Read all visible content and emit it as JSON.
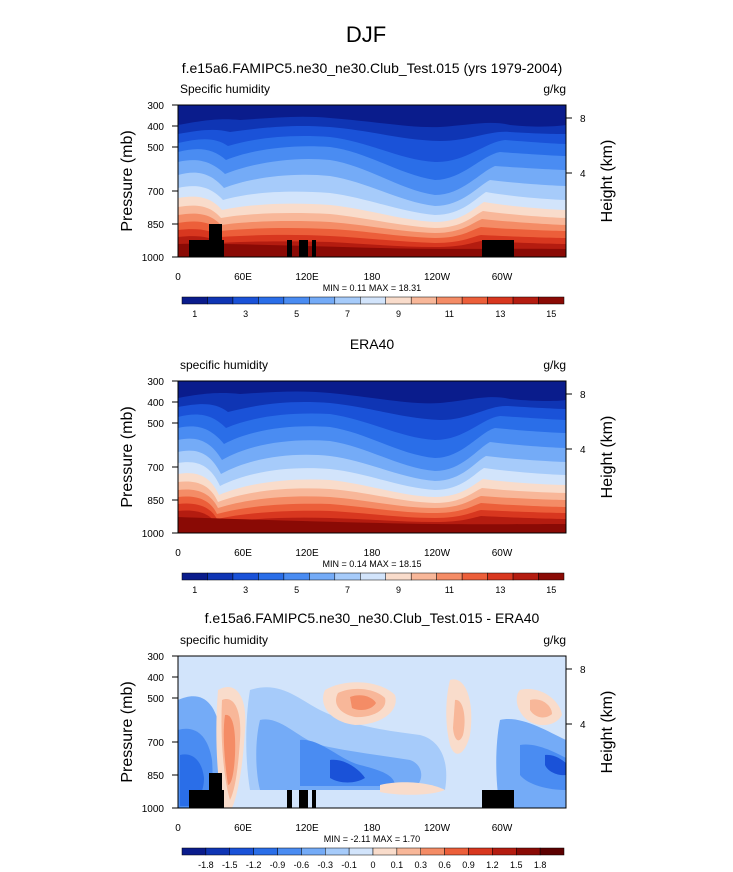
{
  "figure": {
    "title": "DJF"
  },
  "chart_data": [
    {
      "type": "heatmap",
      "title": "f.e15a6.FAMIPC5.ne30_ne30.Club_Test.015 (yrs 1979-2004)",
      "field_label": "Specific humidity",
      "units": "g/kg",
      "ylabel": "Pressure (mb)",
      "y2label": "Height (km)",
      "pressure_ticks": [
        "300",
        "400",
        "500",
        "700",
        "850",
        "1000"
      ],
      "height_ticks": [
        "8",
        "4"
      ],
      "x_ticks": [
        "0",
        "60E",
        "120E",
        "180",
        "120W",
        "60W"
      ],
      "stats": "MIN =   0.11   MAX =  18.31",
      "colorbar_labels": [
        "1",
        "3",
        "5",
        "7",
        "9",
        "11",
        "13",
        "15"
      ],
      "colorbar_colors": [
        "#0a1c8c",
        "#0f35b4",
        "#1a52d8",
        "#2a6ee8",
        "#4a8cf2",
        "#74abf7",
        "#a6cbfa",
        "#d2e4fb",
        "#f9dccb",
        "#f8b799",
        "#f48c66",
        "#ec5f3a",
        "#d8371f",
        "#b41c10",
        "#8a0a05"
      ],
      "contour_values": [
        1,
        2,
        3,
        4,
        5,
        6,
        7,
        8,
        9,
        10,
        11,
        12,
        13,
        14,
        15
      ],
      "levels_approx_pressure": [
        330,
        360,
        390,
        420,
        450,
        480,
        520,
        560,
        600,
        640,
        690,
        730,
        770,
        810,
        860
      ]
    },
    {
      "type": "heatmap",
      "title": "ERA40",
      "field_label": "specific humidity",
      "units": "g/kg",
      "ylabel": "Pressure (mb)",
      "y2label": "Height (km)",
      "pressure_ticks": [
        "300",
        "400",
        "500",
        "700",
        "850",
        "1000"
      ],
      "height_ticks": [
        "8",
        "4"
      ],
      "x_ticks": [
        "0",
        "60E",
        "120E",
        "180",
        "120W",
        "60W"
      ],
      "stats": "MIN =   0.14   MAX =  18.15",
      "colorbar_labels": [
        "1",
        "3",
        "5",
        "7",
        "9",
        "11",
        "13",
        "15"
      ],
      "colorbar_colors": [
        "#0a1c8c",
        "#0f35b4",
        "#1a52d8",
        "#2a6ee8",
        "#4a8cf2",
        "#74abf7",
        "#a6cbfa",
        "#d2e4fb",
        "#f9dccb",
        "#f8b799",
        "#f48c66",
        "#ec5f3a",
        "#d8371f",
        "#b41c10",
        "#8a0a05"
      ]
    },
    {
      "type": "heatmap",
      "title": "f.e15a6.FAMIPC5.ne30_ne30.Club_Test.015 - ERA40",
      "field_label": "specific humidity",
      "units": "g/kg",
      "ylabel": "Pressure (mb)",
      "y2label": "Height (km)",
      "pressure_ticks": [
        "300",
        "400",
        "500",
        "700",
        "850",
        "1000"
      ],
      "height_ticks": [
        "8",
        "4"
      ],
      "x_ticks": [
        "0",
        "60E",
        "120E",
        "180",
        "120W",
        "60W"
      ],
      "stats": "MIN =  -2.11   MAX =   1.70",
      "colorbar_labels": [
        "-1.8",
        "-1.5",
        "-1.2",
        "-0.9",
        "-0.6",
        "-0.3",
        "-0.1",
        "0",
        "0.1",
        "0.3",
        "0.6",
        "0.9",
        "1.2",
        "1.5",
        "1.8"
      ],
      "colorbar_colors": [
        "#0a1c8c",
        "#0f35b4",
        "#1a52d8",
        "#2a6ee8",
        "#4a8cf2",
        "#74abf7",
        "#a6cbfa",
        "#d2e4fb",
        "#f9dccb",
        "#f8b799",
        "#f48c66",
        "#ec5f3a",
        "#d8371f",
        "#b41c10",
        "#8a0a05",
        "#5c0000"
      ]
    }
  ]
}
